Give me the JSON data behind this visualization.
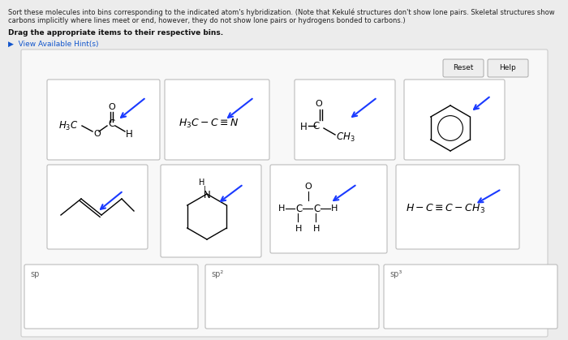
{
  "bg_color": "#ececec",
  "panel_bg": "#ffffff",
  "title_line1": "Sort these molecules into bins corresponding to the indicated atom's hybridization. (Note that Kekulé structures don't show lone pairs. Skeletal structures show",
  "title_line2": "carbons implicitly where lines meet or end, however, they do not show lone pairs or hydrogens bonded to carbons.)",
  "bold_text": "Drag the appropriate items to their respective bins.",
  "hint_text": "▶  View Available Hint(s)",
  "reset_label": "Reset",
  "help_label": "Help",
  "arrow_color": "#1a3aff",
  "box_border": "#bbbbbb",
  "bin_labels": [
    "sp",
    "sp²",
    "sp³"
  ]
}
